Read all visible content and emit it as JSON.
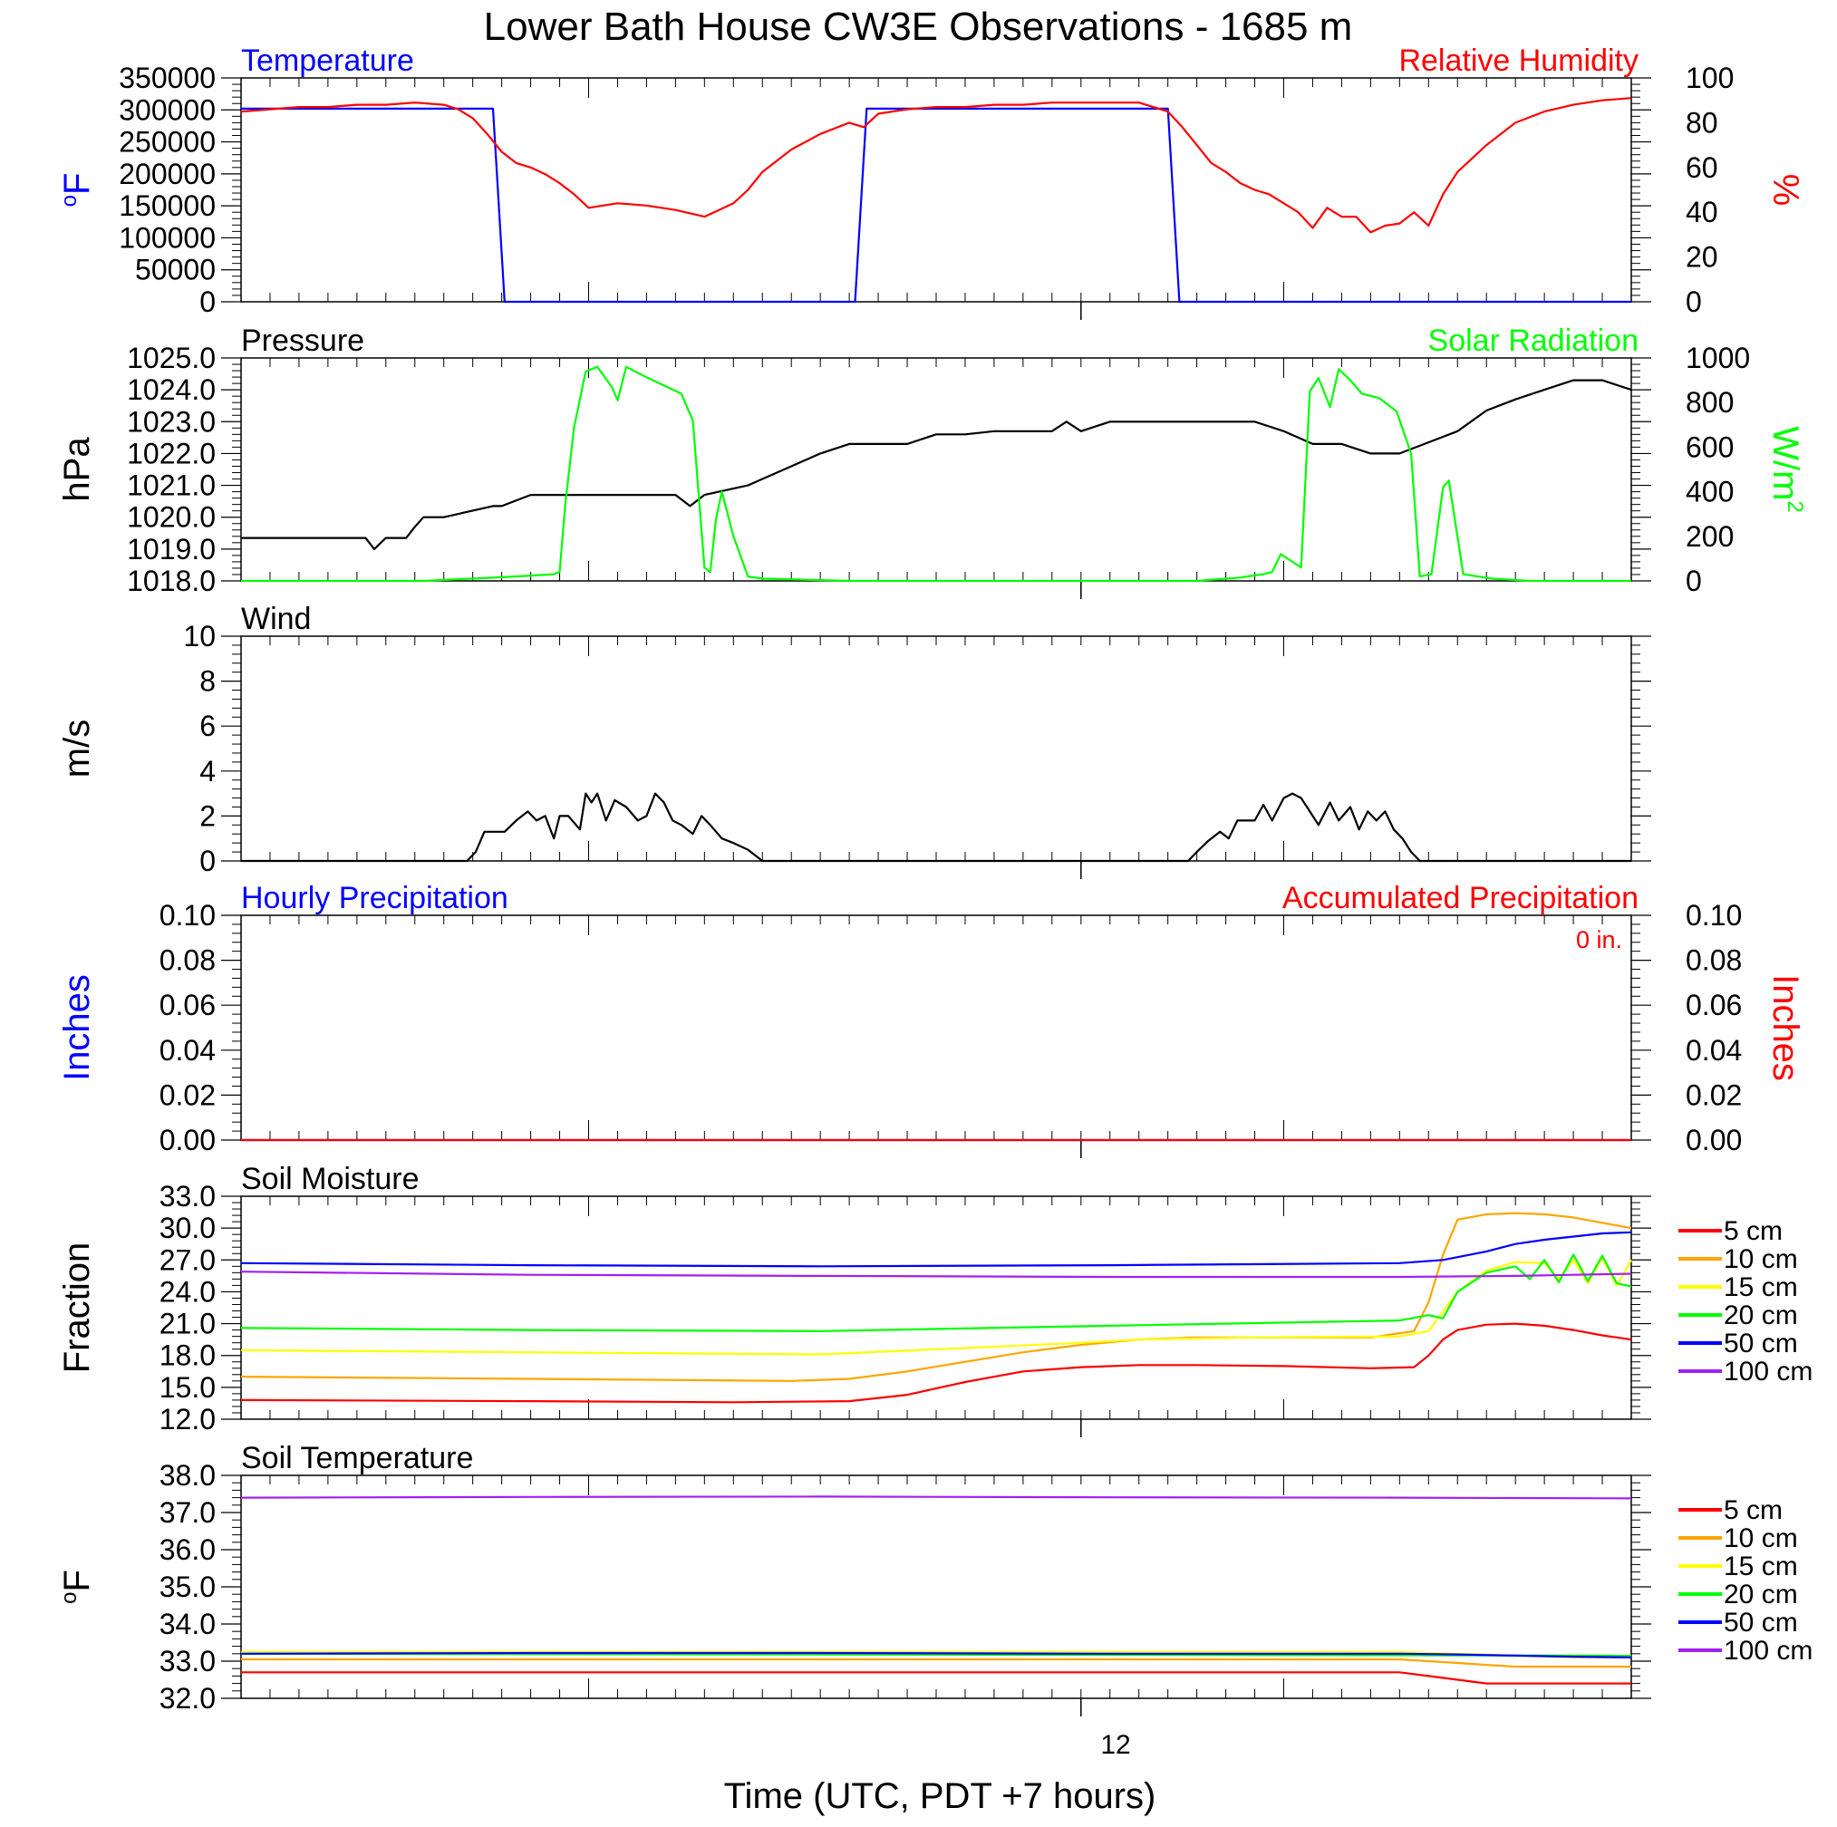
{
  "title": "Lower Bath House CW3E Observations - 1685 m",
  "xlabel": "Time (UTC, PDT +7 hours)",
  "x_tick_label": "12",
  "chart_data": [
    {
      "type": "line",
      "left_title": "Temperature",
      "right_title": "Relative Humidity",
      "left_unit": "oF",
      "right_unit": "%",
      "left_ylim": [
        0,
        350000
      ],
      "left_ticks": [
        "0",
        "50000",
        "100000",
        "150000",
        "200000",
        "250000",
        "300000",
        "350000"
      ],
      "right_ylim": [
        0,
        100
      ],
      "right_ticks": [
        "0",
        "20",
        "40",
        "60",
        "80",
        "100"
      ],
      "series": [
        {
          "name": "Temperature",
          "axis": "left",
          "color": "#0000ff",
          "x": [
            0,
            8.7,
            9.1,
            21.2,
            21.6,
            32.0,
            32.4,
            48
          ],
          "y": [
            302000,
            302000,
            0,
            0,
            302000,
            302000,
            0,
            0
          ]
        },
        {
          "name": "Relative Humidity",
          "axis": "right",
          "color": "#ff0000",
          "x": [
            0,
            1,
            2,
            3,
            4,
            5,
            6,
            7,
            7.5,
            8,
            8.5,
            9,
            9.5,
            10,
            10.5,
            11,
            11.5,
            12,
            12.5,
            13,
            14,
            15,
            16,
            16.5,
            17,
            17.5,
            18,
            19,
            20,
            21,
            21.5,
            22,
            23,
            24,
            25,
            26,
            27,
            28,
            29,
            30,
            31,
            32,
            32.5,
            33,
            33.5,
            34,
            34.5,
            35,
            35.5,
            36,
            36.5,
            37,
            37.5,
            38,
            38.5,
            39,
            39.5,
            40,
            40.5,
            41,
            41.5,
            42,
            43,
            44,
            45,
            46,
            47,
            48
          ],
          "y": [
            85,
            86,
            87,
            87,
            88,
            88,
            89,
            88,
            86,
            82,
            75,
            67,
            62,
            60,
            57,
            53,
            48,
            42,
            43,
            44,
            43,
            41,
            38,
            41,
            44,
            50,
            58,
            68,
            75,
            80,
            78,
            84,
            86,
            87,
            87,
            88,
            88,
            89,
            89,
            89,
            89,
            85,
            78,
            70,
            62,
            58,
            53,
            50,
            48,
            44,
            40,
            33,
            42,
            38,
            38,
            31,
            34,
            35,
            40,
            34,
            48,
            58,
            70,
            80,
            85,
            88,
            90,
            91
          ]
        }
      ]
    },
    {
      "type": "line",
      "left_title": "Pressure",
      "right_title": "Solar Radiation",
      "left_unit": "hPa",
      "right_unit": "W/m2",
      "left_ylim": [
        1018.0,
        1025.0
      ],
      "left_ticks": [
        "1018.0",
        "1019.0",
        "1020.0",
        "1021.0",
        "1022.0",
        "1023.0",
        "1024.0",
        "1025.0"
      ],
      "right_ylim": [
        0,
        1000
      ],
      "right_ticks": [
        "0",
        "200",
        "400",
        "600",
        "800",
        "1000"
      ],
      "series": [
        {
          "name": "Pressure",
          "axis": "left",
          "color": "#000000",
          "x": [
            0,
            4.3,
            4.6,
            5,
            5.7,
            6,
            6.3,
            7,
            8.7,
            9,
            10,
            11,
            12,
            13,
            14,
            15,
            15.5,
            16,
            17,
            17.5,
            18,
            19,
            20,
            21,
            22,
            23,
            24,
            25,
            26,
            27,
            28,
            28.5,
            29,
            30,
            31,
            32,
            33,
            34,
            35,
            36,
            37,
            38,
            39,
            40,
            41,
            42,
            43,
            44,
            45,
            46,
            47,
            48
          ],
          "x_note": "hours from start",
          "y": [
            1019.35,
            1019.35,
            1019.0,
            1019.35,
            1019.35,
            1019.7,
            1020.0,
            1020.0,
            1020.35,
            1020.35,
            1020.7,
            1020.7,
            1020.7,
            1020.7,
            1020.7,
            1020.7,
            1020.35,
            1020.7,
            1020.9,
            1021.0,
            1021.2,
            1021.6,
            1022.0,
            1022.3,
            1022.3,
            1022.3,
            1022.6,
            1022.6,
            1022.7,
            1022.7,
            1022.7,
            1023.0,
            1022.7,
            1023.0,
            1023.0,
            1023.0,
            1023.0,
            1023.0,
            1023.0,
            1022.7,
            1022.3,
            1022.3,
            1022.0,
            1022.0,
            1022.35,
            1022.7,
            1023.35,
            1023.7,
            1024.0,
            1024.3,
            1024.3,
            1024.0
          ]
        },
        {
          "name": "Solar Radiation",
          "axis": "right",
          "color": "#00ff00",
          "x": [
            0,
            6.3,
            9.5,
            10.8,
            11.0,
            11.2,
            11.5,
            11.9,
            12.3,
            12.8,
            13.0,
            13.3,
            13.9,
            15.2,
            15.6,
            16.0,
            16.2,
            16.4,
            16.6,
            17.0,
            17.5,
            18.0,
            21.0,
            24.0,
            27.0,
            30.0,
            33.0,
            34.5,
            35.0,
            35.3,
            35.6,
            35.9,
            36.6,
            36.9,
            37.2,
            37.6,
            37.9,
            38.3,
            38.7,
            39.3,
            39.9,
            40.4,
            40.7,
            41.1,
            41.5,
            41.7,
            42.2,
            42.7,
            43.2,
            44.5,
            48.0
          ],
          "y": [
            0,
            0,
            20,
            30,
            40,
            350,
            690,
            940,
            960,
            870,
            810,
            960,
            920,
            840,
            720,
            60,
            40,
            280,
            400,
            200,
            20,
            10,
            0,
            0,
            0,
            0,
            0,
            15,
            25,
            30,
            40,
            120,
            60,
            850,
            910,
            780,
            950,
            900,
            840,
            820,
            760,
            570,
            20,
            30,
            420,
            450,
            30,
            20,
            10,
            0,
            0
          ]
        }
      ]
    },
    {
      "type": "line",
      "left_title": "Wind",
      "left_unit": "m/s",
      "left_ylim": [
        0,
        10
      ],
      "left_ticks": [
        "0",
        "2",
        "4",
        "6",
        "8",
        "10"
      ],
      "series": [
        {
          "name": "Wind",
          "axis": "left",
          "color": "#000000",
          "x": [
            0,
            7.8,
            8.1,
            8.4,
            9.1,
            9.5,
            9.9,
            10.2,
            10.5,
            10.8,
            11.0,
            11.3,
            11.7,
            11.9,
            12.1,
            12.3,
            12.6,
            12.9,
            13.3,
            13.7,
            14.0,
            14.3,
            14.6,
            14.9,
            15.2,
            15.6,
            15.9,
            16.2,
            16.6,
            17.0,
            17.5,
            18.0,
            19.0,
            24.0,
            32.7,
            33.0,
            33.4,
            33.8,
            34.1,
            34.4,
            34.7,
            35.0,
            35.3,
            35.6,
            36.0,
            36.3,
            36.6,
            36.9,
            37.2,
            37.6,
            37.9,
            38.3,
            38.6,
            38.9,
            39.2,
            39.5,
            39.8,
            40.1,
            40.4,
            40.7,
            41.0,
            41.5,
            48.0
          ],
          "y": [
            0,
            0,
            0.4,
            1.3,
            1.3,
            1.8,
            2.2,
            1.8,
            2.0,
            1.0,
            2.0,
            2.0,
            1.4,
            3.0,
            2.6,
            3.0,
            1.8,
            2.7,
            2.4,
            1.8,
            2.0,
            3.0,
            2.6,
            1.8,
            1.6,
            1.2,
            2.0,
            1.6,
            1.0,
            0.8,
            0.5,
            0,
            0,
            0,
            0,
            0.4,
            0.9,
            1.3,
            1.0,
            1.8,
            1.8,
            1.8,
            2.5,
            1.8,
            2.8,
            3.0,
            2.8,
            2.2,
            1.6,
            2.6,
            1.8,
            2.4,
            1.4,
            2.2,
            1.8,
            2.2,
            1.4,
            1.0,
            0.4,
            0,
            0,
            0,
            0
          ]
        }
      ]
    },
    {
      "type": "line",
      "left_title": "Hourly Precipitation",
      "right_title": "Accumulated Precipitation",
      "annotation": "0 in.",
      "left_unit": "Inches",
      "right_unit": "Inches",
      "left_ylim": [
        0,
        0.1
      ],
      "left_ticks": [
        "0.00",
        "0.02",
        "0.04",
        "0.06",
        "0.08",
        "0.10"
      ],
      "right_ylim": [
        0,
        0.1
      ],
      "right_ticks": [
        "0.00",
        "0.02",
        "0.04",
        "0.06",
        "0.08",
        "0.10"
      ],
      "series": [
        {
          "name": "Hourly Precipitation",
          "axis": "left",
          "color": "#0000ff",
          "x": [
            0,
            48
          ],
          "y": [
            0,
            0
          ]
        },
        {
          "name": "Accumulated Precipitation",
          "axis": "right",
          "color": "#ff0000",
          "x": [
            0,
            48
          ],
          "y": [
            0,
            0
          ]
        }
      ]
    },
    {
      "type": "line",
      "left_title": "Soil Moisture",
      "left_unit": "Fraction",
      "left_ylim": [
        12.0,
        33.0
      ],
      "left_ticks": [
        "12.0",
        "15.0",
        "18.0",
        "21.0",
        "24.0",
        "27.0",
        "30.0",
        "33.0"
      ],
      "legend_position": "right",
      "series": [
        {
          "name": "5 cm",
          "color": "#ff0000",
          "x": [
            0,
            10,
            17,
            21,
            23,
            25,
            27,
            29,
            31,
            33,
            36,
            39,
            40.5,
            41,
            41.5,
            42,
            43,
            44,
            45,
            46,
            47,
            48
          ],
          "y": [
            13.8,
            13.7,
            13.6,
            13.7,
            14.3,
            15.5,
            16.5,
            16.9,
            17.1,
            17.1,
            17.0,
            16.8,
            16.9,
            18.0,
            19.5,
            20.4,
            20.9,
            21.0,
            20.8,
            20.4,
            19.9,
            19.5
          ]
        },
        {
          "name": "10 cm",
          "color": "#ffa500",
          "x": [
            0,
            10,
            19,
            21,
            23,
            25,
            27,
            29,
            31,
            33,
            36,
            39,
            40.5,
            41,
            41.5,
            42,
            43,
            44,
            45,
            46,
            47,
            48
          ],
          "y": [
            16.0,
            15.8,
            15.6,
            15.8,
            16.5,
            17.4,
            18.3,
            19.0,
            19.5,
            19.7,
            19.7,
            19.7,
            20.3,
            23.0,
            27.5,
            30.8,
            31.3,
            31.4,
            31.3,
            31.0,
            30.5,
            30.0
          ]
        },
        {
          "name": "15 cm",
          "color": "#ffff00",
          "x": [
            0,
            10,
            20,
            25,
            29,
            31,
            35,
            40,
            41,
            42,
            43,
            44,
            45,
            45.5,
            46,
            46.5,
            47,
            47.5,
            48
          ],
          "y": [
            18.5,
            18.3,
            18.1,
            18.7,
            19.2,
            19.5,
            19.7,
            19.8,
            20.3,
            24.0,
            26.0,
            26.8,
            26.7,
            25.2,
            27.0,
            24.8,
            27.2,
            24.6,
            27.0
          ]
        },
        {
          "name": "20 cm",
          "color": "#00ff00",
          "x": [
            0,
            10,
            20,
            30,
            40,
            41,
            41.5,
            42,
            43,
            44,
            44.5,
            45,
            45.5,
            46,
            46.5,
            47,
            47.5,
            48
          ],
          "y": [
            20.6,
            20.4,
            20.3,
            20.8,
            21.3,
            21.8,
            21.5,
            24.0,
            25.8,
            26.4,
            25.2,
            27.0,
            24.9,
            27.5,
            25.0,
            27.4,
            24.8,
            24.5
          ]
        },
        {
          "name": "50 cm",
          "color": "#0000ff",
          "x": [
            0,
            10,
            20,
            30,
            40,
            41.5,
            43,
            44,
            45,
            46,
            47,
            48
          ],
          "y": [
            26.7,
            26.5,
            26.4,
            26.5,
            26.7,
            27.0,
            27.8,
            28.5,
            28.9,
            29.2,
            29.5,
            29.6
          ]
        },
        {
          "name": "100 cm",
          "color": "#a020f0",
          "x": [
            0,
            10,
            20,
            30,
            40,
            44,
            46,
            48
          ],
          "y": [
            25.9,
            25.6,
            25.5,
            25.4,
            25.4,
            25.5,
            25.6,
            25.7
          ]
        }
      ]
    },
    {
      "type": "line",
      "left_title": "Soil Temperature",
      "left_unit": "oF",
      "left_ylim": [
        32.0,
        38.0
      ],
      "left_ticks": [
        "32.0",
        "33.0",
        "34.0",
        "35.0",
        "36.0",
        "37.0",
        "38.0"
      ],
      "legend_position": "right",
      "series": [
        {
          "name": "5 cm",
          "color": "#ff0000",
          "x": [
            0,
            10,
            20,
            30,
            40,
            41,
            42,
            43,
            44,
            45,
            46,
            47,
            48
          ],
          "y": [
            32.7,
            32.7,
            32.7,
            32.7,
            32.7,
            32.6,
            32.5,
            32.4,
            32.4,
            32.4,
            32.4,
            32.4,
            32.4
          ]
        },
        {
          "name": "10 cm",
          "color": "#ffa500",
          "x": [
            0,
            10,
            20,
            30,
            40,
            41,
            42,
            43,
            44,
            45,
            46,
            47,
            48
          ],
          "y": [
            33.05,
            33.05,
            33.05,
            33.05,
            33.05,
            33.0,
            32.95,
            32.9,
            32.85,
            32.85,
            32.85,
            32.85,
            32.85
          ]
        },
        {
          "name": "15 cm",
          "color": "#ffff00",
          "x": [
            0,
            10,
            20,
            30,
            40,
            42,
            44,
            46,
            48
          ],
          "y": [
            33.25,
            33.25,
            33.25,
            33.25,
            33.25,
            33.2,
            33.15,
            33.1,
            33.1
          ]
        },
        {
          "name": "20 cm",
          "color": "#00ff00",
          "x": [
            0,
            48
          ],
          "y": [
            33.2,
            33.15
          ]
        },
        {
          "name": "50 cm",
          "color": "#0000ff",
          "x": [
            0,
            10,
            20,
            30,
            40,
            42,
            44,
            46,
            48
          ],
          "y": [
            33.2,
            33.22,
            33.22,
            33.2,
            33.2,
            33.18,
            33.15,
            33.12,
            33.1
          ]
        },
        {
          "name": "100 cm",
          "color": "#a020f0",
          "x": [
            0,
            10,
            20,
            30,
            40,
            44,
            48
          ],
          "y": [
            37.4,
            37.42,
            37.43,
            37.41,
            37.4,
            37.39,
            37.38
          ]
        }
      ]
    }
  ]
}
